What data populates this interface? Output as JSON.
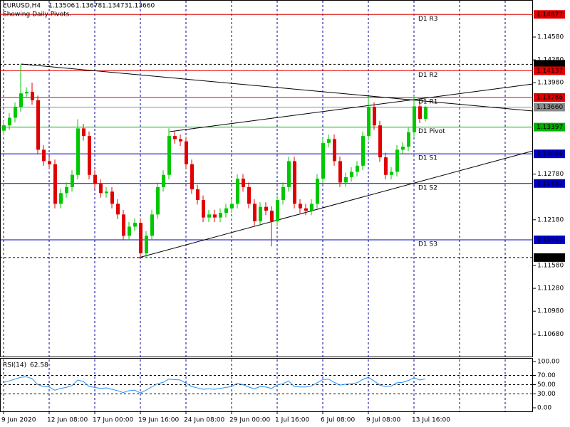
{
  "chart_data": {
    "type": "candlestick",
    "header": {
      "symbol": "EURUSD,H4",
      "ohlc": [
        "1.13506",
        "1.13678",
        "1.13473",
        "1.13660"
      ],
      "note": "Showing Daily Pivots."
    },
    "categories": [
      "9 Jun 2020",
      null,
      null,
      null,
      null,
      null,
      null,
      null,
      "12 Jun 08:00",
      null,
      null,
      null,
      null,
      null,
      null,
      null,
      "17 Jun 00:00",
      null,
      null,
      null,
      null,
      null,
      null,
      null,
      "19 Jun 16:00",
      null,
      null,
      null,
      null,
      null,
      null,
      null,
      "24 Jun 08:00",
      null,
      null,
      null,
      null,
      null,
      null,
      null,
      "29 Jun 00:00",
      null,
      null,
      null,
      null,
      null,
      null,
      null,
      "1 Jul 16:00",
      null,
      null,
      null,
      null,
      null,
      null,
      null,
      "6 Jul 08:00",
      null,
      null,
      null,
      null,
      null,
      null,
      null,
      "9 Jul 08:00",
      null,
      null,
      null,
      null,
      null,
      null,
      null,
      "13 Jul 16:00",
      null,
      null
    ],
    "open": [
      1.1335,
      1.1342,
      1.1352,
      1.1366,
      1.1384,
      1.1386,
      1.1375,
      1.131,
      1.1295,
      1.1291,
      1.1239,
      1.1253,
      1.1261,
      1.1277,
      1.1338,
      1.1328,
      1.1277,
      1.1265,
      1.1253,
      1.1255,
      1.1239,
      1.1225,
      1.1197,
      1.1209,
      1.1214,
      1.1174,
      1.1197,
      1.1225,
      1.1261,
      1.1277,
      1.1328,
      1.1324,
      1.1321,
      1.1291,
      1.1258,
      1.1244,
      1.1221,
      1.1225,
      1.1221,
      1.1227,
      1.1233,
      1.1239,
      1.1272,
      1.1261,
      1.1239,
      1.1216,
      1.1235,
      1.123,
      1.1216,
      1.1244,
      1.1261,
      1.1295,
      1.1239,
      1.1233,
      1.123,
      1.1239,
      1.1272,
      1.1319,
      1.1324,
      1.1295,
      1.1267,
      1.1274,
      1.1281,
      1.1289,
      1.1328,
      1.1366,
      1.1342,
      1.13,
      1.1277,
      1.1281,
      1.131,
      1.1314,
      1.1333,
      1.1367,
      1.13506
    ],
    "high": [
      1.1348,
      1.1358,
      1.1372,
      1.1422,
      1.1392,
      1.1398,
      1.1381,
      1.1316,
      1.1301,
      1.1297,
      1.1259,
      1.1267,
      1.1283,
      1.135,
      1.1344,
      1.1334,
      1.1283,
      1.1271,
      1.1261,
      1.1261,
      1.1245,
      1.1231,
      1.1215,
      1.122,
      1.122,
      1.1203,
      1.1231,
      1.1267,
      1.1283,
      1.1338,
      1.1334,
      1.133,
      1.1327,
      1.1297,
      1.1264,
      1.125,
      1.1231,
      1.1231,
      1.1233,
      1.1239,
      1.1245,
      1.1278,
      1.1278,
      1.1267,
      1.1245,
      1.1241,
      1.1241,
      1.1236,
      1.125,
      1.1267,
      1.1301,
      1.1301,
      1.1245,
      1.1239,
      1.1245,
      1.1278,
      1.1325,
      1.133,
      1.133,
      1.1301,
      1.128,
      1.1287,
      1.1295,
      1.1334,
      1.138,
      1.1372,
      1.1348,
      1.1306,
      1.1287,
      1.1316,
      1.132,
      1.1339,
      1.1381,
      1.1373,
      1.13678
    ],
    "low": [
      1.1329,
      1.1336,
      1.1346,
      1.136,
      1.1378,
      1.1369,
      1.1304,
      1.1289,
      1.1285,
      1.1233,
      1.1233,
      1.1247,
      1.1255,
      1.1271,
      1.1322,
      1.1271,
      1.1259,
      1.1247,
      1.1247,
      1.1233,
      1.1219,
      1.1191,
      1.1191,
      1.1203,
      1.1168,
      1.1168,
      1.1191,
      1.1219,
      1.1255,
      1.1271,
      1.1318,
      1.1315,
      1.1285,
      1.1252,
      1.1238,
      1.1215,
      1.1215,
      1.1215,
      1.1215,
      1.1221,
      1.1227,
      1.1233,
      1.1255,
      1.1233,
      1.121,
      1.121,
      1.1224,
      1.1183,
      1.121,
      1.1238,
      1.1255,
      1.1233,
      1.1227,
      1.1224,
      1.1224,
      1.1233,
      1.1266,
      1.1313,
      1.1289,
      1.1261,
      1.1261,
      1.1268,
      1.1275,
      1.1283,
      1.1322,
      1.1336,
      1.1294,
      1.1271,
      1.1271,
      1.1275,
      1.1304,
      1.1308,
      1.1327,
      1.1345,
      1.13473
    ],
    "close": [
      1.1342,
      1.1352,
      1.1366,
      1.1384,
      1.1386,
      1.1375,
      1.131,
      1.1295,
      1.1291,
      1.1239,
      1.1253,
      1.1261,
      1.1277,
      1.1338,
      1.1328,
      1.1277,
      1.1265,
      1.1253,
      1.1255,
      1.1239,
      1.1225,
      1.1197,
      1.1209,
      1.1214,
      1.1174,
      1.1197,
      1.1225,
      1.1261,
      1.1277,
      1.1328,
      1.1324,
      1.1321,
      1.1291,
      1.1258,
      1.1244,
      1.1221,
      1.1225,
      1.1221,
      1.1227,
      1.1233,
      1.1239,
      1.1272,
      1.1261,
      1.1239,
      1.1216,
      1.1235,
      1.123,
      1.1216,
      1.1244,
      1.1261,
      1.1295,
      1.1239,
      1.1233,
      1.123,
      1.1239,
      1.1272,
      1.1319,
      1.1324,
      1.1295,
      1.1267,
      1.1274,
      1.1281,
      1.1289,
      1.1328,
      1.1366,
      1.1342,
      1.13,
      1.1277,
      1.1281,
      1.131,
      1.1314,
      1.1333,
      1.1367,
      1.13506,
      1.1366
    ],
    "up_color": "#00c800",
    "down_color": "#e00000",
    "ylim": [
      1.10384,
      1.15057
    ],
    "yticks": [
      {
        "value": 1.1458,
        "label": "1.14580"
      },
      {
        "value": 1.1428,
        "label": "1.14280"
      },
      {
        "value": 1.1398,
        "label": "1.13980"
      },
      {
        "value": 1.1278,
        "label": "1.12780"
      },
      {
        "value": 1.1218,
        "label": "1.12180"
      },
      {
        "value": 1.1158,
        "label": "1.11580"
      },
      {
        "value": 1.1128,
        "label": "1.11280"
      },
      {
        "value": 1.1098,
        "label": "1.10980"
      },
      {
        "value": 1.1068,
        "label": "1.10680"
      }
    ],
    "levels": [
      {
        "name": "D1 R3",
        "value": 1.14877,
        "color": "#e00000"
      },
      {
        "value": 1.14222,
        "color": "#000000",
        "dashed": true
      },
      {
        "name": "D1 R2",
        "value": 1.14137,
        "color": "#e00000"
      },
      {
        "name": "D1 R1",
        "value": 1.13786,
        "color": "#e00000"
      },
      {
        "value": {
          "value": 1.1366,
          "label": "1.13660"
        },
        "color": "#8a8a8a"
      },
      {
        "name": "D1 Pivot",
        "value": 1.13397,
        "color": "#00b000"
      },
      {
        "name": "D1 S1",
        "value": 1.13046,
        "color": "#0000c0"
      },
      {
        "name": "D1 S2",
        "value": 1.12657,
        "color": "#0000c0"
      },
      {
        "name": "D1 S3",
        "value": 1.11917,
        "color": "#0000c0"
      },
      {
        "value": 1.11684,
        "color": "#000000",
        "dashed": true
      }
    ],
    "rsi": {
      "name": "RSI(14)",
      "color": "#1e90ff",
      "values": [
        55,
        58,
        62,
        66,
        67,
        63,
        50,
        46,
        45,
        38,
        42,
        44,
        48,
        60,
        57,
        46,
        44,
        42,
        43,
        40,
        37,
        33,
        37,
        38,
        32,
        38,
        45,
        52,
        55,
        62,
        61,
        60,
        53,
        46,
        43,
        40,
        41,
        40,
        42,
        44,
        46,
        53,
        50,
        45,
        41,
        46,
        45,
        42,
        49,
        52,
        58,
        46,
        45,
        45,
        47,
        54,
        61,
        62,
        55,
        49,
        51,
        52,
        54,
        61,
        66,
        58,
        49,
        46,
        47,
        54,
        55,
        59,
        65,
        60,
        62.58
      ],
      "ylim": [
        0,
        100
      ],
      "yticks": [
        {
          "value": 100,
          "label": "100.00"
        },
        {
          "value": 70,
          "label": "70.00"
        },
        {
          "value": 50,
          "label": "50.00"
        },
        {
          "value": 30,
          "label": "30.00"
        },
        {
          "value": 0,
          "label": "0.00"
        }
      ],
      "levels": [
        70,
        50,
        30
      ]
    }
  }
}
